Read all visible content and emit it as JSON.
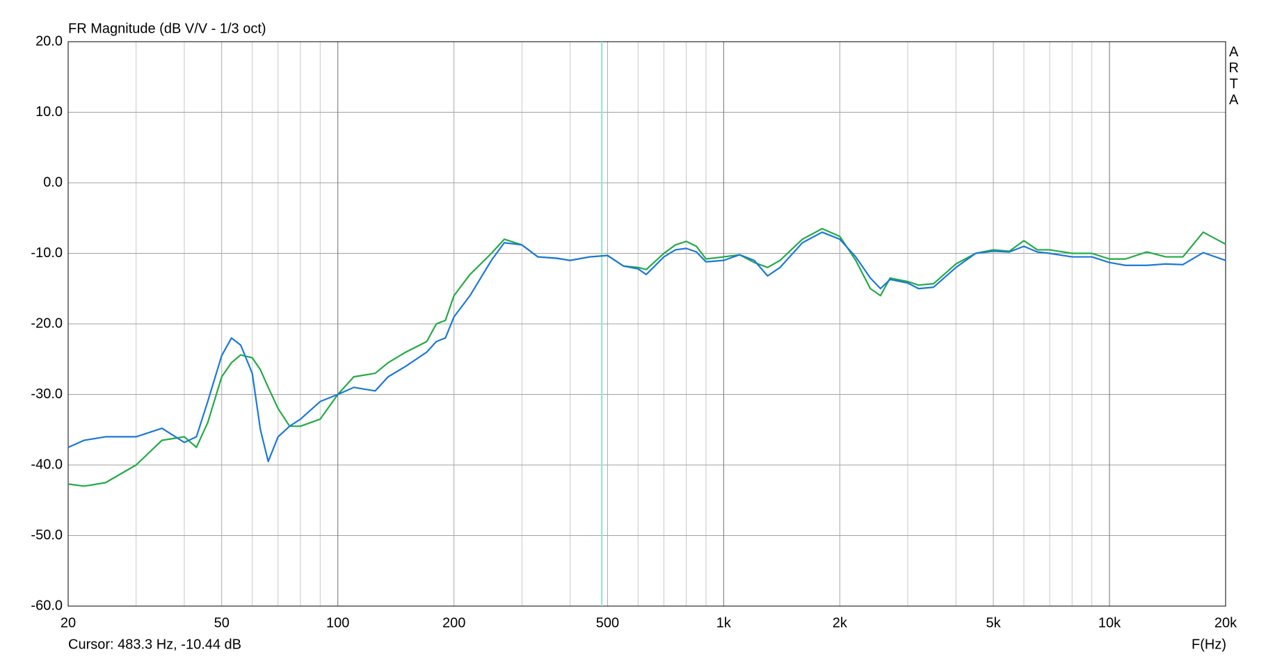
{
  "chart_data": {
    "type": "line",
    "title": "FR Magnitude (dB V/V - 1/3 oct)",
    "x_label": "F(Hz)",
    "watermark": "ARTA",
    "cursor": {
      "label": "Cursor: 483.3 Hz, -10.44 dB",
      "x": 483.3,
      "color": "#86e8c8"
    },
    "xscale": "log",
    "grid": true,
    "xlim": [
      20,
      20000
    ],
    "ylim": [
      -60,
      20
    ],
    "xticks": [
      20,
      50,
      100,
      200,
      500,
      {
        "value": 1000,
        "label": "1k"
      },
      {
        "value": 2000,
        "label": "2k"
      },
      {
        "value": 5000,
        "label": "5k"
      },
      {
        "value": 10000,
        "label": "10k"
      },
      {
        "value": 20000,
        "label": "20k"
      }
    ],
    "xminor_ticks": [
      30,
      40,
      60,
      70,
      80,
      90,
      300,
      400,
      600,
      700,
      800,
      900,
      3000,
      4000,
      6000,
      7000,
      8000,
      9000
    ],
    "yticks": [
      {
        "value": 20,
        "label": "20.0"
      },
      {
        "value": 10,
        "label": "10.0"
      },
      {
        "value": 0,
        "label": "0.0"
      },
      {
        "value": -10,
        "label": "-10.0"
      },
      {
        "value": -20,
        "label": "-20.0"
      },
      {
        "value": -30,
        "label": "-30.0"
      },
      {
        "value": -40,
        "label": "-40.0"
      },
      {
        "value": -50,
        "label": "-50.0"
      },
      {
        "value": -60,
        "label": "-60.0"
      }
    ],
    "x": [
      20,
      22,
      25,
      30,
      35,
      40,
      43,
      46,
      50,
      53,
      56,
      60,
      63,
      66,
      70,
      75,
      80,
      90,
      100,
      110,
      125,
      135,
      150,
      170,
      180,
      190,
      200,
      220,
      250,
      270,
      300,
      330,
      370,
      400,
      450,
      500,
      550,
      600,
      630,
      700,
      750,
      800,
      850,
      900,
      1000,
      1100,
      1200,
      1300,
      1400,
      1600,
      1800,
      2000,
      2200,
      2400,
      2550,
      2700,
      3000,
      3200,
      3500,
      4000,
      4500,
      5000,
      5500,
      6000,
      6500,
      7000,
      8000,
      9000,
      10000,
      11000,
      12500,
      14000,
      15500,
      17500,
      20000
    ],
    "series": [
      {
        "color": "#22aa44",
        "values": [
          -42.7,
          -43,
          -42.5,
          -40,
          -36.5,
          -36,
          -37.5,
          -34,
          -27.5,
          -25.5,
          -24.4,
          -24.8,
          -26.5,
          -29,
          -32,
          -34.5,
          -34.5,
          -33.5,
          -30,
          -27.5,
          -27,
          -25.5,
          -24,
          -22.5,
          -20,
          -19.5,
          -16,
          -13,
          -10,
          -8,
          -8.8,
          -10.5,
          -10.7,
          -11,
          -10.5,
          -10.3,
          -11.8,
          -12,
          -12.3,
          -10,
          -8.8,
          -8.3,
          -9,
          -10.8,
          -10.5,
          -10.2,
          -11.3,
          -12,
          -11,
          -8,
          -6.5,
          -7.6,
          -11,
          -15,
          -16,
          -13.5,
          -14,
          -14.5,
          -14.3,
          -11.5,
          -10,
          -9.5,
          -9.7,
          -8.2,
          -9.5,
          -9.5,
          -10,
          -10,
          -10.8,
          -10.8,
          -9.8,
          -10.5,
          -10.5,
          -7,
          -8.7
        ]
      },
      {
        "color": "#1a78d8",
        "values": [
          -37.5,
          -36.5,
          -36,
          -36,
          -34.8,
          -36.8,
          -36,
          -31,
          -24.5,
          -22,
          -23,
          -27,
          -35,
          -39.5,
          -36,
          -34.5,
          -33.5,
          -31,
          -30,
          -29,
          -29.5,
          -27.5,
          -26,
          -24,
          -22.5,
          -22,
          -19,
          -16,
          -11,
          -8.5,
          -8.8,
          -10.5,
          -10.7,
          -11,
          -10.5,
          -10.3,
          -11.8,
          -12.2,
          -13,
          -10.5,
          -9.5,
          -9.3,
          -9.8,
          -11.2,
          -11,
          -10.2,
          -11,
          -13.2,
          -12,
          -8.5,
          -7,
          -8,
          -10.5,
          -13.5,
          -15,
          -13.7,
          -14.2,
          -15,
          -14.8,
          -12,
          -10,
          -9.7,
          -9.8,
          -9,
          -9.8,
          -10,
          -10.5,
          -10.5,
          -11.3,
          -11.7,
          -11.7,
          -11.5,
          -11.6,
          -9.9,
          -11
        ]
      }
    ]
  }
}
